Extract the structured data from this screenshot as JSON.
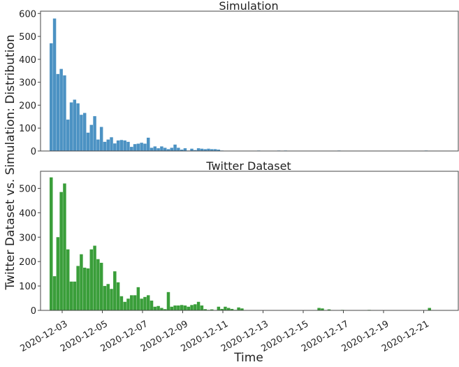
{
  "figure": {
    "ylabel": "Twitter Dataset vs. Simulation: Distribution",
    "xlabel": "Time",
    "x_tick_labels": [
      "2020-12-03",
      "2020-12-05",
      "2020-12-07",
      "2020-12-09",
      "2020-12-11",
      "2020-12-13",
      "2020-12-15",
      "2020-12-17",
      "2020-12-19",
      "2020-12-21"
    ]
  },
  "chart_data": [
    {
      "type": "bar",
      "title": "Simulation",
      "color": "#4c92c3",
      "ylim": [
        0,
        610
      ],
      "yticks": [
        0,
        100,
        200,
        300,
        400,
        500,
        600
      ],
      "x_start": "2020-12-02T09:00",
      "bin_hours": 4,
      "values": [
        470,
        578,
        336,
        358,
        330,
        137,
        212,
        224,
        208,
        158,
        166,
        80,
        114,
        152,
        50,
        105,
        40,
        50,
        60,
        33,
        46,
        48,
        46,
        40,
        18,
        30,
        32,
        36,
        32,
        58,
        14,
        20,
        12,
        20,
        14,
        8,
        14,
        28,
        14,
        6,
        12,
        2,
        10,
        4,
        12,
        10,
        8,
        10,
        8,
        8,
        6,
        2,
        0,
        0,
        0,
        0,
        0,
        0,
        0,
        0,
        0,
        0,
        2,
        0,
        0,
        0,
        0,
        0,
        2,
        0,
        2,
        0,
        0,
        0,
        0,
        0,
        0,
        0,
        0,
        0,
        0,
        0,
        0,
        0,
        0,
        0,
        2,
        0,
        0,
        0,
        0,
        0,
        0,
        0,
        0,
        0,
        0,
        0,
        0,
        0,
        0,
        0,
        0,
        0,
        0,
        0,
        0,
        0,
        0,
        0,
        0,
        0,
        2,
        0,
        0
      ]
    },
    {
      "type": "bar",
      "title": "Twitter Dataset",
      "color": "#3a9e3a",
      "ylim": [
        0,
        570
      ],
      "yticks": [
        0,
        100,
        200,
        300,
        400,
        500
      ],
      "x_start": "2020-12-02T09:00",
      "bin_hours": 4,
      "values": [
        545,
        140,
        300,
        485,
        520,
        250,
        118,
        118,
        182,
        230,
        175,
        172,
        250,
        265,
        210,
        195,
        100,
        108,
        88,
        160,
        115,
        58,
        35,
        48,
        62,
        62,
        95,
        48,
        55,
        62,
        40,
        15,
        18,
        10,
        5,
        75,
        15,
        20,
        20,
        22,
        20,
        15,
        22,
        25,
        35,
        20,
        5,
        2,
        4,
        0,
        15,
        6,
        15,
        10,
        6,
        2,
        12,
        8,
        0,
        0,
        0,
        0,
        0,
        0,
        0,
        0,
        0,
        0,
        0,
        0,
        0,
        0,
        0,
        0,
        0,
        0,
        0,
        0,
        0,
        0,
        10,
        8,
        0,
        4,
        0,
        0,
        0,
        2,
        0,
        0,
        0,
        0,
        0,
        0,
        0,
        2,
        0,
        0,
        0,
        0,
        0,
        0,
        0,
        0,
        0,
        0,
        0,
        0,
        0,
        0,
        0,
        0,
        0,
        10,
        0,
        0
      ]
    }
  ]
}
